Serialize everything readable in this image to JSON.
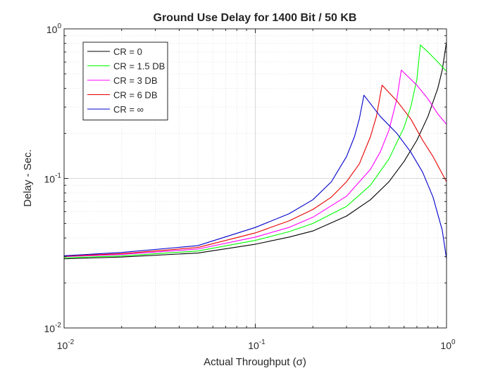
{
  "chart_data": {
    "type": "line",
    "title": "Ground Use Delay for 1400 Bit / 50 KB",
    "xlabel": "Actual Throughput (σ)",
    "ylabel": "Delay - Sec.",
    "xscale": "log",
    "yscale": "log",
    "xlim": [
      0.01,
      1
    ],
    "ylim": [
      0.01,
      1
    ],
    "grid": true,
    "legend_position": "top-left",
    "x_ticks": [
      {
        "value": 0.01,
        "base": "10",
        "exp": "-2"
      },
      {
        "value": 0.1,
        "base": "10",
        "exp": "-1"
      },
      {
        "value": 1,
        "base": "10",
        "exp": "0"
      }
    ],
    "y_ticks": [
      {
        "value": 0.01,
        "base": "10",
        "exp": "-2"
      },
      {
        "value": 0.1,
        "base": "10",
        "exp": "-1"
      },
      {
        "value": 1,
        "base": "10",
        "exp": "0"
      }
    ],
    "series": [
      {
        "name": "CR = 0",
        "color": "#000000",
        "x": [
          0.01,
          0.02,
          0.05,
          0.1,
          0.15,
          0.2,
          0.3,
          0.4,
          0.5,
          0.6,
          0.7,
          0.8,
          0.9,
          0.95,
          1.0
        ],
        "y": [
          0.029,
          0.0298,
          0.0317,
          0.0363,
          0.0405,
          0.0445,
          0.056,
          0.072,
          0.095,
          0.13,
          0.18,
          0.26,
          0.4,
          0.53,
          0.82
        ]
      },
      {
        "name": "CR = 1.5 DB",
        "color": "#00ff00",
        "x": [
          0.01,
          0.02,
          0.05,
          0.1,
          0.15,
          0.2,
          0.3,
          0.4,
          0.5,
          0.6,
          0.65,
          0.7,
          0.73,
          0.8,
          0.9,
          1.0
        ],
        "y": [
          0.0295,
          0.0303,
          0.0327,
          0.0385,
          0.044,
          0.05,
          0.065,
          0.09,
          0.135,
          0.22,
          0.3,
          0.46,
          0.78,
          0.7,
          0.6,
          0.52
        ]
      },
      {
        "name": "CR = 3 DB",
        "color": "#ff00ff",
        "x": [
          0.01,
          0.02,
          0.05,
          0.1,
          0.15,
          0.2,
          0.3,
          0.4,
          0.45,
          0.5,
          0.55,
          0.58,
          0.7,
          0.8,
          0.9,
          1.0
        ],
        "y": [
          0.03,
          0.031,
          0.0337,
          0.0405,
          0.047,
          0.055,
          0.076,
          0.115,
          0.15,
          0.21,
          0.34,
          0.53,
          0.42,
          0.34,
          0.27,
          0.23
        ]
      },
      {
        "name": "CR = 6 DB",
        "color": "#e60000",
        "x": [
          0.01,
          0.02,
          0.05,
          0.1,
          0.15,
          0.2,
          0.25,
          0.3,
          0.35,
          0.4,
          0.43,
          0.46,
          0.55,
          0.65,
          0.75,
          0.85,
          1.0
        ],
        "y": [
          0.0302,
          0.0314,
          0.0345,
          0.0432,
          0.052,
          0.062,
          0.075,
          0.095,
          0.125,
          0.19,
          0.26,
          0.42,
          0.33,
          0.25,
          0.18,
          0.14,
          0.095
        ]
      },
      {
        "name": "CR = ∞",
        "color": "#0000cc",
        "x": [
          0.01,
          0.02,
          0.05,
          0.1,
          0.15,
          0.2,
          0.25,
          0.3,
          0.33,
          0.35,
          0.37,
          0.45,
          0.55,
          0.65,
          0.75,
          0.85,
          0.95,
          1.0
        ],
        "y": [
          0.0304,
          0.032,
          0.0355,
          0.047,
          0.058,
          0.072,
          0.095,
          0.14,
          0.19,
          0.25,
          0.36,
          0.26,
          0.2,
          0.15,
          0.11,
          0.075,
          0.045,
          0.029
        ]
      }
    ]
  }
}
